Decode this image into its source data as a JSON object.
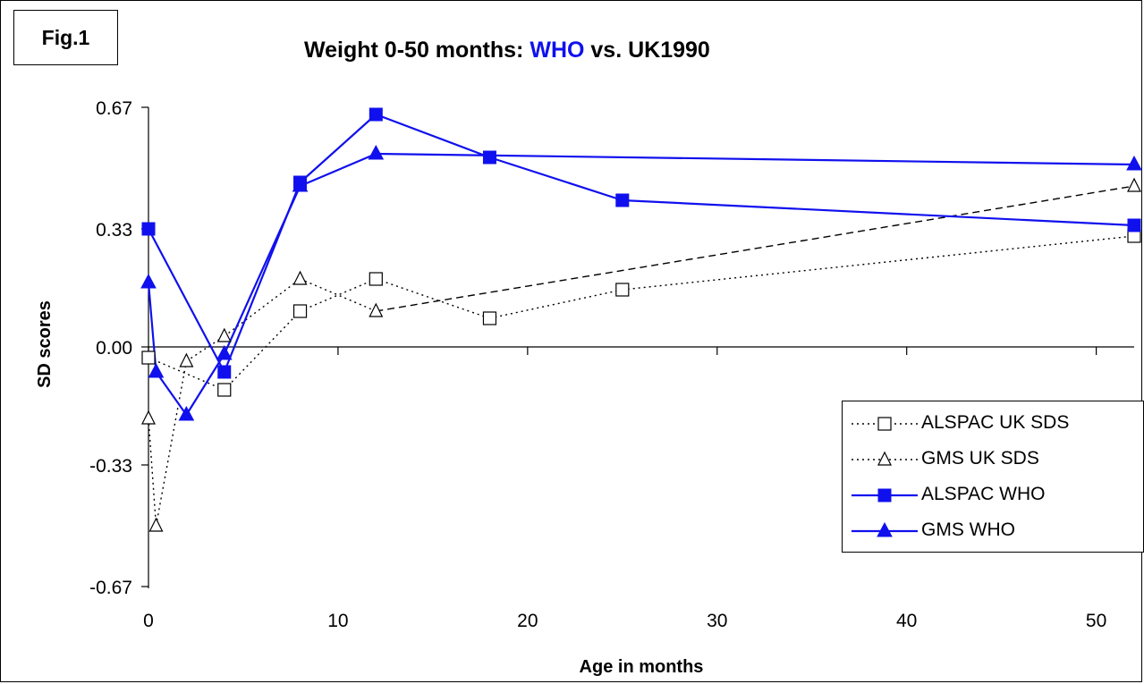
{
  "fig_label": "Fig.1",
  "title_parts": {
    "prefix": "Weight 0-50 months: ",
    "highlight": "WHO",
    "suffix": " vs. UK1990"
  },
  "chart_data": {
    "type": "line",
    "title": "Weight 0-50 months: WHO vs. UK1990",
    "xlabel": "Age in months",
    "ylabel": "SD scores",
    "xlim": [
      0,
      52
    ],
    "ylim": [
      -0.67,
      0.67
    ],
    "x_ticks": [
      0,
      10,
      20,
      30,
      40,
      50
    ],
    "x_tick_labels": [
      "0",
      "10",
      "20",
      "30",
      "40",
      "50"
    ],
    "y_ticks": [
      0.67,
      0.33,
      0.0,
      -0.33,
      -0.67
    ],
    "y_tick_labels": [
      "0.67",
      "0.33",
      "0.00",
      "-0.33",
      "-0.67"
    ],
    "grid": false,
    "legend_position": "bottom-right",
    "series": [
      {
        "name": "ALSPAC UK SDS",
        "color": "#000000",
        "line_style": "dotted",
        "marker": "open-square",
        "points": [
          [
            0,
            -0.03
          ],
          [
            4,
            -0.12
          ],
          [
            8,
            0.1
          ],
          [
            12,
            0.19
          ],
          [
            18,
            0.08
          ],
          [
            25,
            0.16
          ],
          [
            52,
            0.31
          ]
        ]
      },
      {
        "name": "GMS UK SDS",
        "color": "#000000",
        "line_style": "dotted-then-dashed",
        "marker": "open-triangle",
        "points": [
          [
            0,
            -0.2
          ],
          [
            0.4,
            -0.5
          ],
          [
            2,
            -0.04
          ],
          [
            4,
            0.03
          ],
          [
            8,
            0.19
          ],
          [
            12,
            0.1
          ],
          [
            52,
            0.45
          ]
        ]
      },
      {
        "name": "ALSPAC WHO",
        "color": "#1010ee",
        "line_style": "solid",
        "marker": "filled-square",
        "points": [
          [
            0,
            0.33
          ],
          [
            4,
            -0.07
          ],
          [
            8,
            0.46
          ],
          [
            12,
            0.65
          ],
          [
            18,
            0.53
          ],
          [
            25,
            0.41
          ],
          [
            52,
            0.34
          ]
        ]
      },
      {
        "name": "GMS WHO",
        "color": "#1010ee",
        "line_style": "solid",
        "marker": "filled-triangle",
        "points": [
          [
            0,
            0.18
          ],
          [
            0.4,
            -0.07
          ],
          [
            2,
            -0.19
          ],
          [
            4,
            -0.02
          ],
          [
            8,
            0.45
          ],
          [
            12,
            0.54
          ],
          [
            52,
            0.51
          ]
        ]
      }
    ]
  }
}
